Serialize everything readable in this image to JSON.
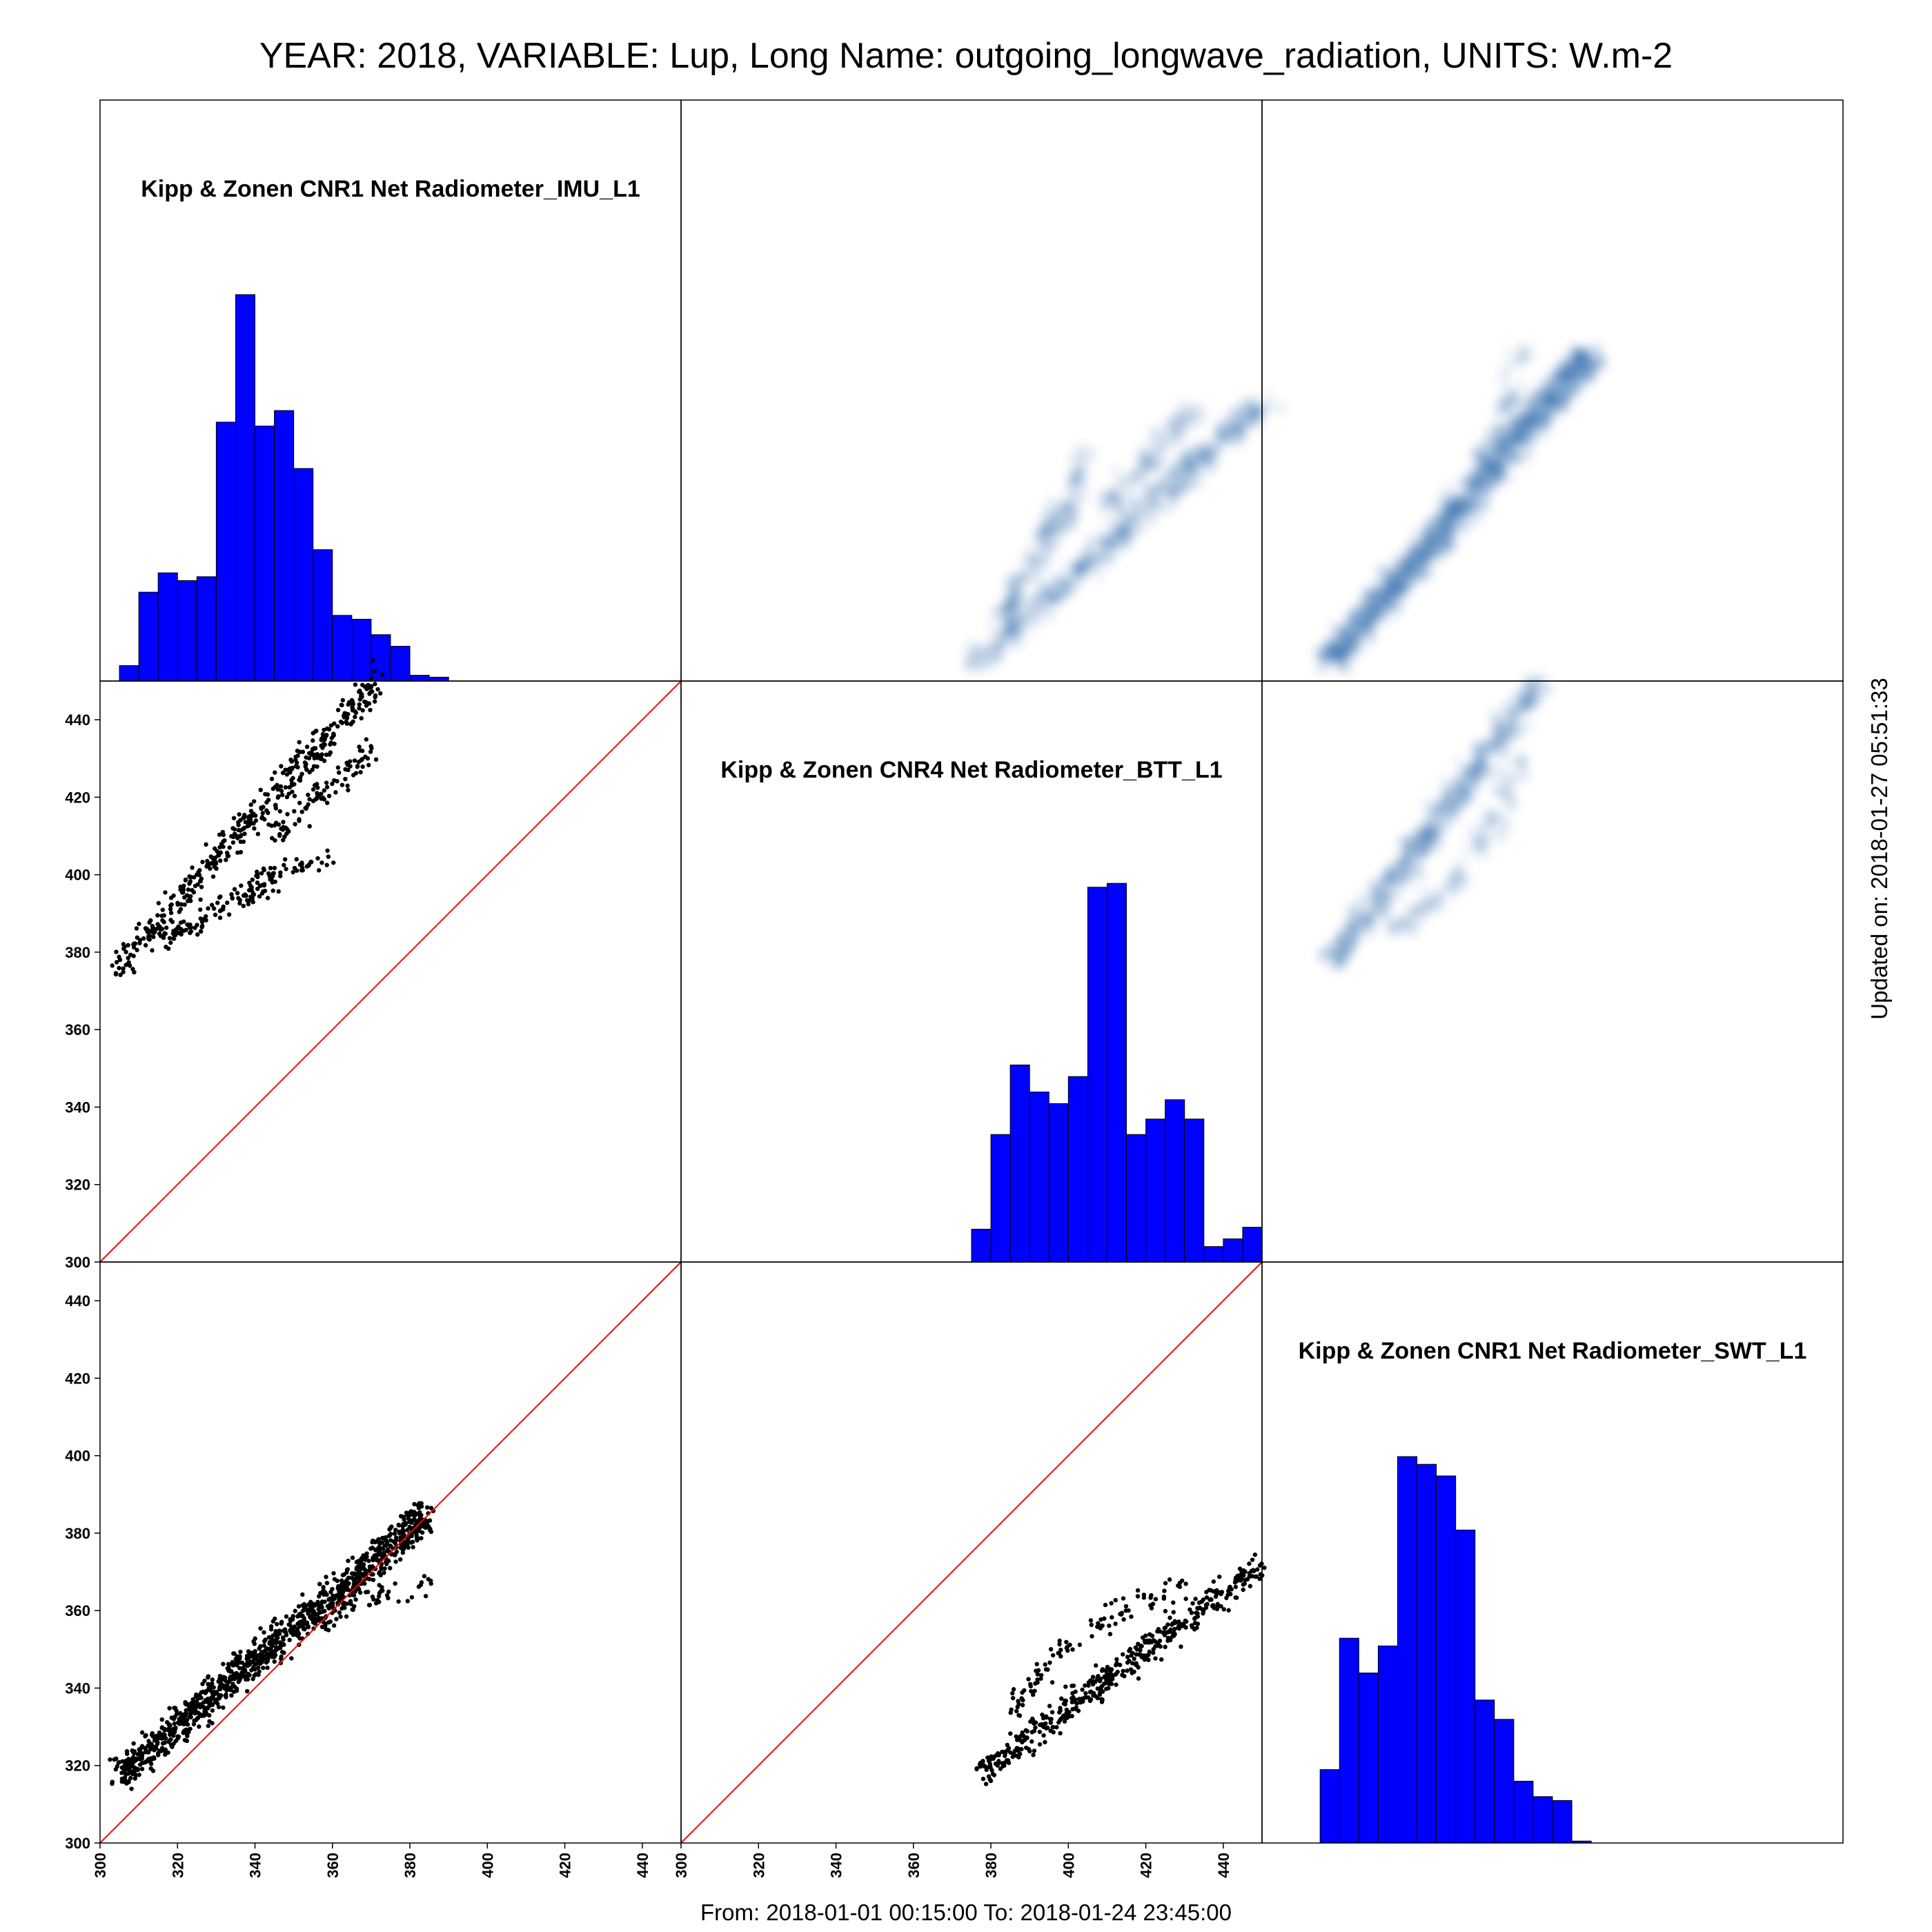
{
  "title": "YEAR: 2018, VARIABLE: Lup, Long Name: outgoing_longwave_radiation, UNITS: W.m-2",
  "footer": "From: 2018-01-01 00:15:00 To: 2018-01-24 23:45:00",
  "updated": "Updated on: 2018-01-27 05:51:33",
  "colors": {
    "histogram": "#0000FF",
    "points": "#000000",
    "identity_line": "#FF0000",
    "density": "#08519C",
    "density_peak": "#C0208F",
    "frame": "#000000"
  },
  "chart_data": {
    "type": "scatter",
    "layout": "scatter-matrix",
    "variables": [
      "Kipp & Zonen CNR1 Net Radiometer_IMU_L1",
      "Kipp & Zonen CNR4 Net Radiometer_BTT_L1",
      "Kipp & Zonen CNR1 Net Radiometer_SWT_L1"
    ],
    "axis_range": [
      300,
      450
    ],
    "ticks": [
      "300",
      "320",
      "340",
      "360",
      "380",
      "400",
      "420",
      "440"
    ],
    "identity_line": true,
    "histograms": [
      {
        "variable": "Kipp & Zonen CNR1 Net Radiometer_IMU_L1",
        "bin_edges": [
          305,
          310,
          315,
          320,
          325,
          330,
          335,
          340,
          345,
          350,
          355,
          360,
          365,
          370,
          375,
          380,
          385,
          390
        ],
        "relative_heights": [
          0.04,
          0.23,
          0.28,
          0.26,
          0.27,
          0.67,
          1.0,
          0.66,
          0.7,
          0.55,
          0.34,
          0.17,
          0.16,
          0.12,
          0.09,
          0.015,
          0.01
        ]
      },
      {
        "variable": "Kipp & Zonen CNR4 Net Radiometer_BTT_L1",
        "bin_edges": [
          375,
          380,
          385,
          390,
          395,
          400,
          405,
          410,
          415,
          420,
          425,
          430,
          435,
          440,
          445,
          450
        ],
        "relative_heights": [
          0.085,
          0.33,
          0.51,
          0.44,
          0.41,
          0.48,
          0.97,
          0.98,
          0.33,
          0.37,
          0.42,
          0.37,
          0.04,
          0.06,
          0.09
        ]
      },
      {
        "variable": "Kipp & Zonen CNR1 Net Radiometer_SWT_L1",
        "bin_edges": [
          315,
          320,
          325,
          330,
          335,
          340,
          345,
          350,
          355,
          360,
          365,
          370,
          375,
          380,
          385
        ],
        "relative_heights": [
          0.19,
          0.53,
          0.44,
          0.51,
          1.0,
          0.98,
          0.95,
          0.81,
          0.37,
          0.32,
          0.16,
          0.12,
          0.11,
          0.005
        ]
      }
    ],
    "scatter_panels": [
      {
        "x": "Kipp & Zonen CNR1 Net Radiometer_IMU_L1",
        "y": "Kipp & Zonen CNR4 Net Radiometer_BTT_L1",
        "bands": [
          {
            "x": [
              305,
              372
            ],
            "y": [
              377,
              450
            ],
            "count": 420,
            "spread": 3
          },
          {
            "x": [
              315,
              345
            ],
            "y": [
              383,
              398
            ],
            "count": 110,
            "spread": 2.5
          },
          {
            "x": [
              340,
              360
            ],
            "y": [
              400,
              404
            ],
            "count": 40,
            "spread": 1.5
          },
          {
            "x": [
              345,
              370
            ],
            "y": [
              410,
              432
            ],
            "count": 90,
            "spread": 3
          }
        ]
      },
      {
        "x": "Kipp & Zonen CNR1 Net Radiometer_IMU_L1",
        "y": "Kipp & Zonen CNR1 Net Radiometer_SWT_L1",
        "bands": [
          {
            "x": [
              305,
              385
            ],
            "y": [
              318,
              385
            ],
            "count": 1100,
            "spread": 3.5
          },
          {
            "x": [
              355,
              375
            ],
            "y": [
              356,
              365
            ],
            "count": 40,
            "spread": 2
          },
          {
            "x": [
              375,
              386
            ],
            "y": [
              362,
              368
            ],
            "count": 12,
            "spread": 2
          }
        ]
      },
      {
        "x": "Kipp & Zonen CNR4 Net Radiometer_BTT_L1",
        "y": "Kipp & Zonen CNR1 Net Radiometer_SWT_L1",
        "bands": [
          {
            "x": [
              377,
              450
            ],
            "y": [
              318,
              372
            ],
            "count": 450,
            "spread": 3
          },
          {
            "x": [
              385,
              400
            ],
            "y": [
              335,
              352
            ],
            "count": 50,
            "spread": 3
          },
          {
            "x": [
              405,
              430
            ],
            "y": [
              355,
              368
            ],
            "count": 50,
            "spread": 3
          }
        ]
      }
    ]
  }
}
